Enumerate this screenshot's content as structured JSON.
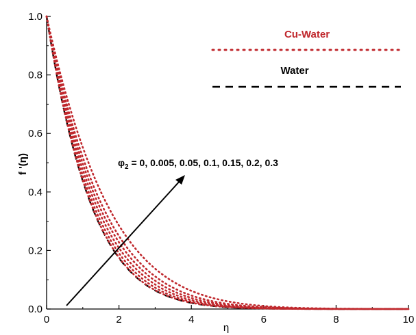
{
  "chart_data": {
    "type": "line",
    "xlabel": "η",
    "ylabel": "f '(η)",
    "xlim": [
      0,
      10
    ],
    "ylim": [
      0,
      1.0
    ],
    "x_ticks": [
      "0",
      "2",
      "4",
      "6",
      "8",
      "10"
    ],
    "y_ticks": [
      "0.0",
      "0.2",
      "0.4",
      "0.6",
      "0.8",
      "1.0"
    ],
    "colors": {
      "cu_water": "#c0282d",
      "water": "#000000"
    },
    "legend": {
      "placement": "top-right",
      "entries": [
        {
          "label": "Cu-Water",
          "style": "dotted",
          "color": "#c0282d"
        },
        {
          "label": "Water",
          "style": "dashed",
          "color": "#000000"
        }
      ]
    },
    "annotation": {
      "symbol": "φ",
      "subscript": "2",
      "text": " = 0, 0.005, 0.05, 0.1, 0.15, 0.2, 0.3"
    },
    "series": [
      {
        "name": "Water",
        "phi2": 0,
        "decay": 0.78,
        "style": "dashed",
        "color": "#000000"
      },
      {
        "phi2": 0.005,
        "decay": 0.775,
        "style": "dotted",
        "color": "#c0282d"
      },
      {
        "phi2": 0.05,
        "decay": 0.74,
        "style": "dotted",
        "color": "#c0282d"
      },
      {
        "phi2": 0.1,
        "decay": 0.7,
        "style": "dotted",
        "color": "#c0282d"
      },
      {
        "phi2": 0.15,
        "decay": 0.66,
        "style": "dotted",
        "color": "#c0282d"
      },
      {
        "phi2": 0.2,
        "decay": 0.62,
        "style": "dotted",
        "color": "#c0282d"
      },
      {
        "phi2": 0.3,
        "decay": 0.56,
        "style": "dotted",
        "color": "#c0282d"
      }
    ],
    "x_step": 0.1
  }
}
